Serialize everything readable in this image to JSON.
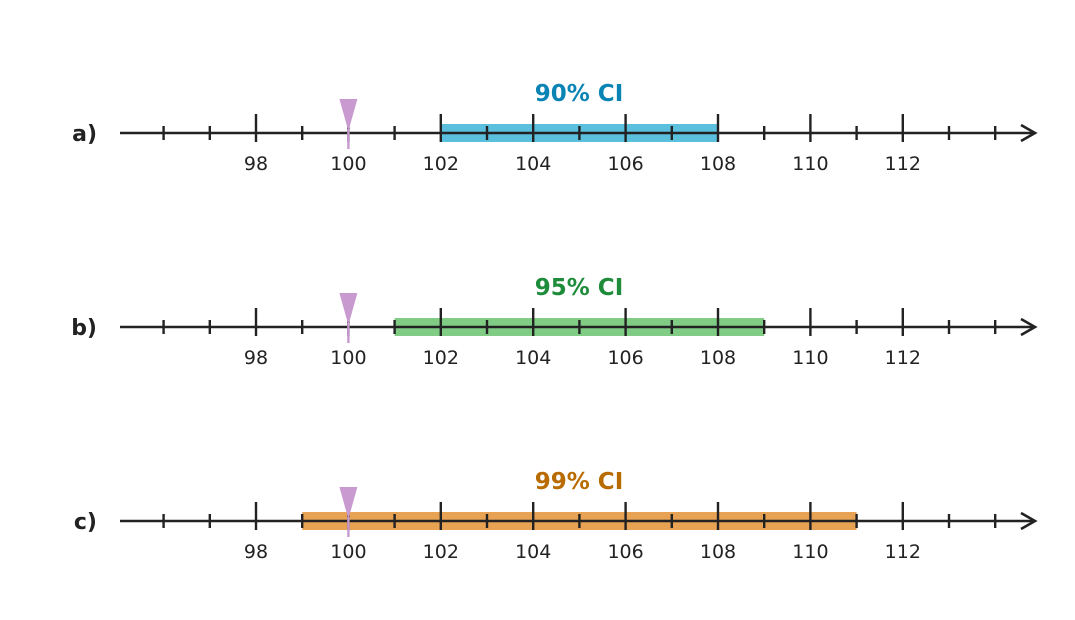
{
  "colors": {
    "axis": "#222222",
    "marker": "#c99ad0"
  },
  "axis": {
    "min": 95.8,
    "max": 114.2,
    "major_ticks": [
      98,
      100,
      102,
      104,
      106,
      108,
      110,
      112
    ],
    "minor_ticks": [
      96,
      97,
      99,
      101,
      103,
      105,
      107,
      109,
      111,
      113,
      114
    ],
    "tick_labels": [
      "98",
      "100",
      "102",
      "104",
      "106",
      "108",
      "110",
      "112"
    ]
  },
  "marker_value": 100,
  "rows": [
    {
      "label": "a)",
      "ci_label": "90% CI",
      "ci_low": 102,
      "ci_high": 108,
      "bar_color": "#5bc0de",
      "text_color": "#0a84b4"
    },
    {
      "label": "b)",
      "ci_label": "95% CI",
      "ci_low": 101,
      "ci_high": 109,
      "bar_color": "#80cc85",
      "text_color": "#1e8c3a"
    },
    {
      "label": "c)",
      "ci_label": "99% CI",
      "ci_low": 99,
      "ci_high": 111,
      "bar_color": "#e8a254",
      "text_color": "#b86b00"
    }
  ]
}
